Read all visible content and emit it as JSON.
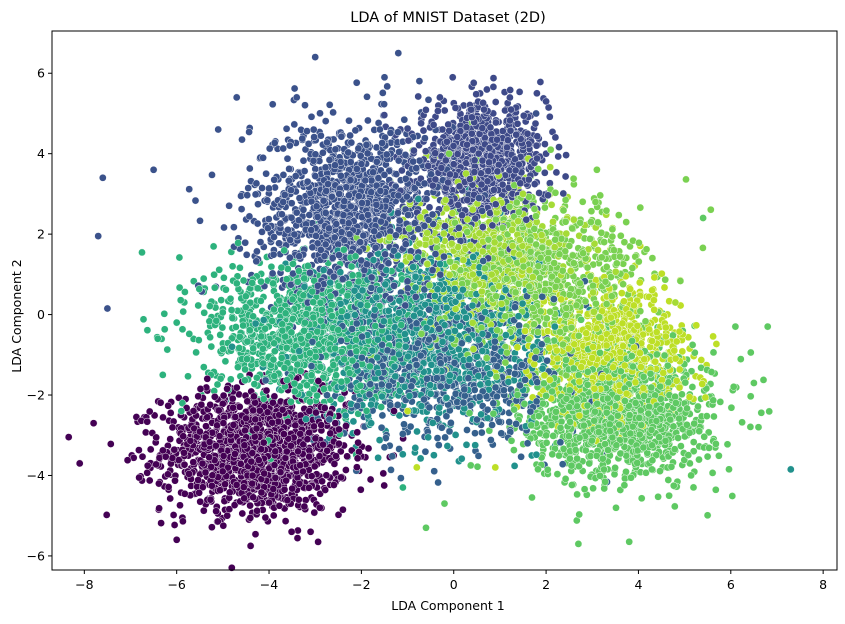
{
  "chart_data": {
    "type": "scatter",
    "title": "LDA of MNIST Dataset (2D)",
    "xlabel": "LDA Component 1",
    "ylabel": "LDA Component 2",
    "xlim": [
      -8.7,
      8.3
    ],
    "ylim": [
      -6.35,
      7.05
    ],
    "xticks": [
      "−8",
      "−6",
      "−4",
      "−2",
      "0",
      "2",
      "4",
      "6",
      "8"
    ],
    "yticks": [
      "−6",
      "−4",
      "−2",
      "0",
      "2",
      "4",
      "6"
    ],
    "grid": false,
    "legend": "none",
    "marker_edge_color": "#ffffff",
    "series": [
      {
        "color": "#440154",
        "center": [
          -4.3,
          -3.4
        ],
        "spread": [
          1.0,
          0.75
        ],
        "n": 1400,
        "extremes": [
          [
            -8.1,
            -3.7
          ],
          [
            -7.8,
            -2.7
          ],
          [
            -6.0,
            -5.6
          ],
          [
            -4.4,
            -5.75
          ],
          [
            -2.9,
            -4.8
          ],
          [
            -2.4,
            -4.85
          ],
          [
            -1.8,
            -4.1
          ],
          [
            -3.1,
            -5.4
          ]
        ]
      },
      {
        "color": "#3b528b",
        "center": [
          -2.2,
          2.6
        ],
        "spread": [
          1.1,
          1.1
        ],
        "n": 1300,
        "extremes": [
          [
            -7.6,
            3.4
          ],
          [
            -7.7,
            1.95
          ],
          [
            -7.5,
            0.15
          ],
          [
            -3.0,
            6.4
          ],
          [
            -1.5,
            5.9
          ],
          [
            -1.2,
            6.5
          ],
          [
            -6.5,
            3.6
          ],
          [
            -5.1,
            4.6
          ],
          [
            -4.7,
            5.4
          ],
          [
            -3.4,
            5.4
          ]
        ]
      },
      {
        "color": "#3e4a89",
        "center": [
          0.6,
          3.8
        ],
        "spread": [
          0.7,
          0.7
        ],
        "n": 900,
        "extremes": [
          [
            1.8,
            5.5
          ],
          [
            2.0,
            5.3
          ],
          [
            -0.3,
            5.4
          ],
          [
            2.0,
            4.0
          ]
        ]
      },
      {
        "color": "#21918c",
        "center": [
          -0.6,
          -0.5
        ],
        "spread": [
          1.2,
          1.1
        ],
        "n": 1100,
        "extremes": [
          [
            7.3,
            -3.85
          ],
          [
            -4.8,
            -0.8
          ],
          [
            -3.2,
            -2.6
          ]
        ]
      },
      {
        "color": "#2db27d",
        "center": [
          -3.2,
          -0.4
        ],
        "spread": [
          1.1,
          0.9
        ],
        "n": 1100,
        "extremes": [
          [
            -6.0,
            -0.2
          ],
          [
            -6.3,
            -1.5
          ],
          [
            -5.9,
            -2.4
          ],
          [
            -1.1,
            -4.3
          ]
        ]
      },
      {
        "color": "#35608d",
        "center": [
          -0.2,
          -1.3
        ],
        "spread": [
          1.3,
          1.0
        ],
        "n": 700,
        "extremes": [
          [
            -1.5,
            -3.3
          ],
          [
            1.6,
            -3.2
          ]
        ]
      },
      {
        "color": "#5ec962",
        "center": [
          3.6,
          -2.5
        ],
        "spread": [
          1.0,
          0.8
        ],
        "n": 1300,
        "extremes": [
          [
            2.7,
            -5.7
          ],
          [
            3.8,
            -5.65
          ],
          [
            6.8,
            -0.3
          ],
          [
            6.1,
            -0.3
          ],
          [
            6.5,
            -1.7
          ],
          [
            6.6,
            -2.8
          ],
          [
            -0.6,
            -5.3
          ],
          [
            -0.2,
            -4.7
          ],
          [
            5.4,
            2.4
          ]
        ]
      },
      {
        "color": "#7ad151",
        "center": [
          1.7,
          0.9
        ],
        "spread": [
          1.2,
          1.0
        ],
        "n": 900,
        "extremes": [
          [
            3.1,
            3.6
          ],
          [
            2.1,
            4.1
          ],
          [
            -0.1,
            4.0
          ]
        ]
      },
      {
        "color": "#bddf26",
        "center": [
          3.4,
          -0.9
        ],
        "spread": [
          0.8,
          0.8
        ],
        "n": 800,
        "extremes": [
          [
            -0.8,
            -3.8
          ],
          [
            0.9,
            -3.8
          ],
          [
            -1.0,
            -2.4
          ]
        ]
      },
      {
        "color": "#a5db36",
        "center": [
          0.8,
          1.6
        ],
        "spread": [
          0.9,
          0.8
        ],
        "n": 600,
        "extremes": [
          [
            4.8,
            0.3
          ],
          [
            1.5,
            3.0
          ]
        ]
      }
    ]
  }
}
